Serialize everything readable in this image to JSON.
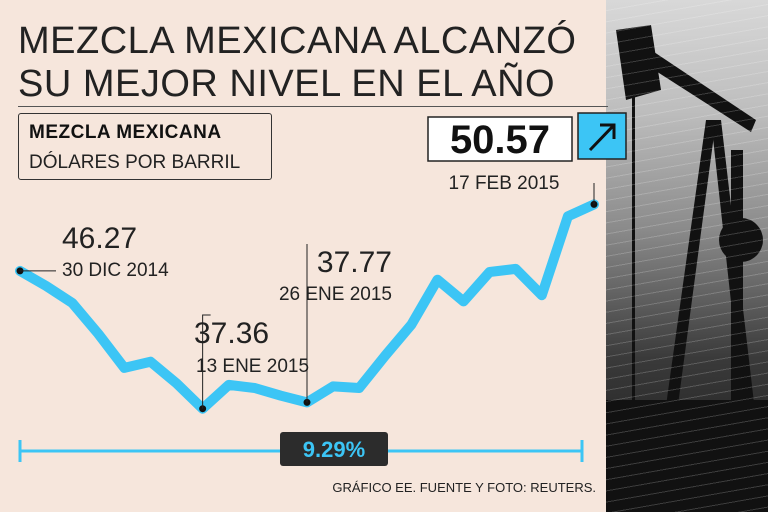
{
  "title_lines": [
    "MEZCLA MEXICANA ALCANZÓ",
    "SU MEJOR NIVEL EN EL AÑO"
  ],
  "legend": {
    "series_label": "MEZCLA MEXICANA",
    "unit_label": "DÓLARES POR BARRIL"
  },
  "footer": "GRÁFICO EE. FUENTE Y FOTO: REUTERS.",
  "colors": {
    "line": "#3cc5f5",
    "background": "#f6e6dc",
    "badge": "#2c2c2c"
  },
  "annotation_icon": "arrow-up-right-icon",
  "change_badge": "9.29%",
  "chart_data": {
    "type": "line",
    "title": "MEZCLA MEXICANA ALCANZÓ SU MEJOR NIVEL EN EL AÑO",
    "ylabel": "DÓLARES POR BARRIL",
    "ylim": [
      36.5,
      51.5
    ],
    "grid": false,
    "values": [
      46.27,
      45.3,
      44.2,
      42.2,
      40.0,
      40.4,
      39.0,
      37.36,
      38.9,
      38.7,
      38.2,
      37.77,
      38.8,
      38.7,
      40.8,
      42.8,
      45.7,
      44.3,
      46.2,
      46.4,
      44.7,
      49.8,
      50.57
    ],
    "annotations": [
      {
        "value": "46.27",
        "date": "30 DIC 2014",
        "index": 0
      },
      {
        "value": "37.36",
        "date": "13 ENE 2015",
        "index": 7
      },
      {
        "value": "37.77",
        "date": "26 ENE 2015",
        "index": 11
      },
      {
        "value": "50.57",
        "date": "17 FEB 2015",
        "index": 22
      }
    ]
  }
}
